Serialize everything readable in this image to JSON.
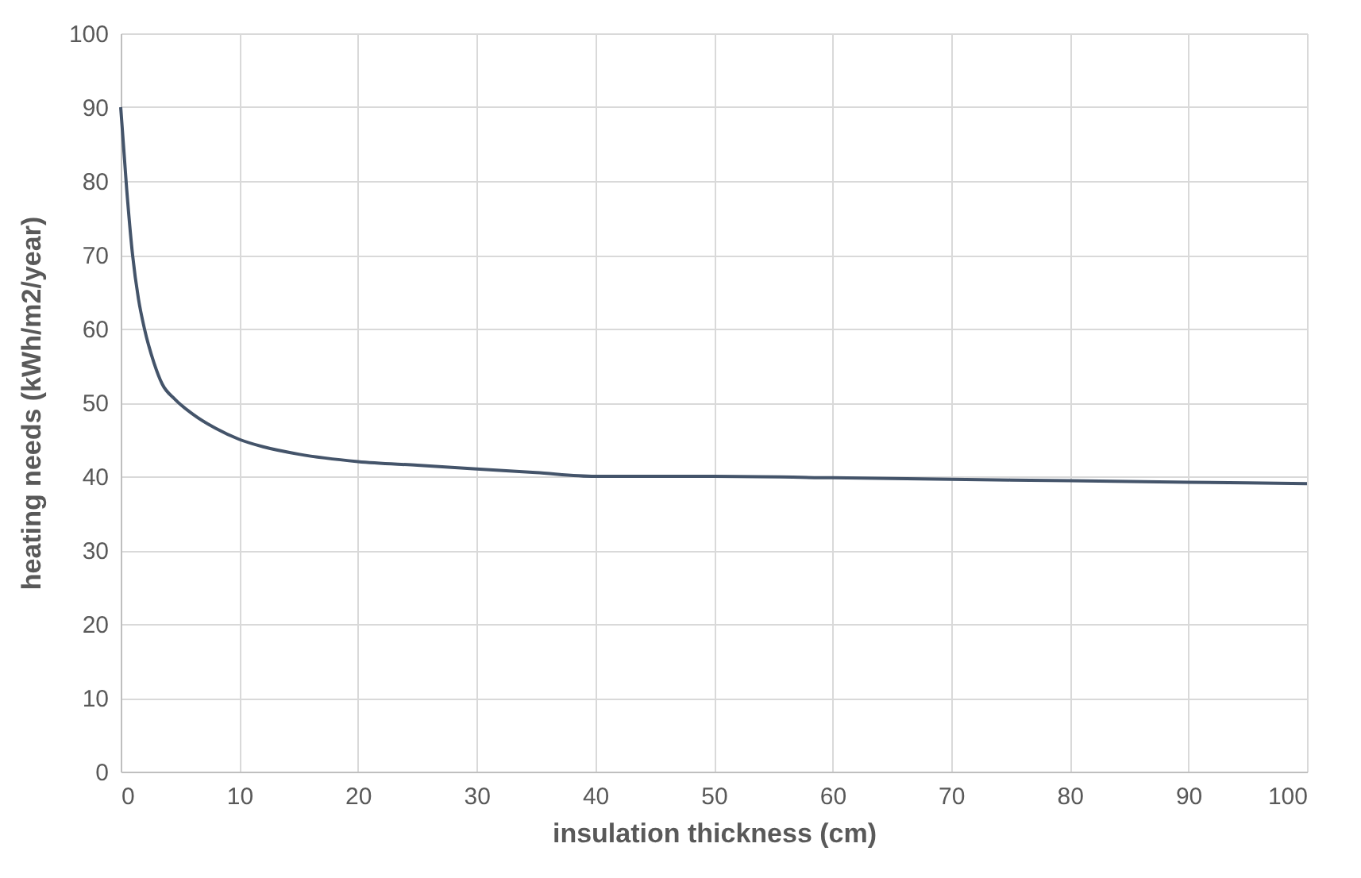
{
  "chart_data": {
    "type": "line",
    "xlabel": "insulation thickness (cm)",
    "ylabel": "heating needs (kWh/m2/year)",
    "x": [
      0,
      0.5,
      1,
      1.5,
      2,
      2.8,
      3.5,
      4.6,
      6,
      8,
      10,
      12,
      15,
      20,
      25,
      30,
      35,
      40,
      50,
      60,
      70,
      80,
      90,
      100
    ],
    "series": [
      {
        "color": "#44546a",
        "values": [
          90,
          79,
          70,
          64,
          60,
          55.4,
          52.5,
          50.4,
          48.5,
          46.5,
          45,
          44,
          43,
          42,
          41.5,
          41,
          40.5,
          40,
          40,
          39.8,
          39.6,
          39.4,
          39.2,
          39
        ]
      }
    ],
    "xlim": [
      0,
      100
    ],
    "xticks": [
      0,
      10,
      20,
      30,
      40,
      50,
      60,
      70,
      80,
      90,
      100
    ],
    "ylim": [
      0,
      100
    ],
    "yticks": [
      0,
      10,
      20,
      30,
      40,
      50,
      60,
      70,
      80,
      90,
      100
    ],
    "grid": true,
    "marker": "none",
    "line_style": "solid"
  }
}
